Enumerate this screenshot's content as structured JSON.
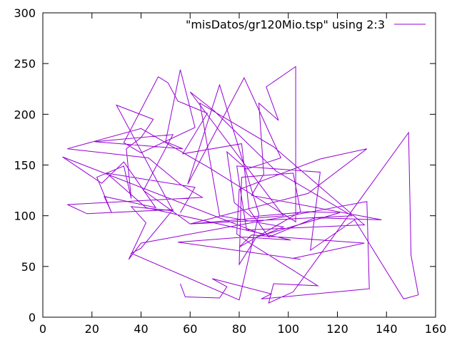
{
  "chart_data": {
    "type": "line",
    "title": "",
    "xlabel": "",
    "ylabel": "",
    "xlim": [
      0,
      160
    ],
    "ylim": [
      0,
      300
    ],
    "x_ticks": [
      "0",
      "20",
      "40",
      "60",
      "80",
      "100",
      "120",
      "140",
      "160"
    ],
    "y_ticks": [
      "0",
      "50",
      "100",
      "150",
      "200",
      "250",
      "300"
    ],
    "grid": false,
    "legend_position": "top-right",
    "series": [
      {
        "name": "\"misDatos/gr120Mio.tsp\" using 2:3",
        "color": "#9400d3",
        "x": [
          56,
          58,
          72,
          75,
          69,
          93,
          89,
          133,
          132,
          40,
          35,
          42,
          36,
          53,
          30,
          45,
          40,
          34,
          36,
          33,
          22,
          28,
          25,
          46,
          33,
          24,
          8,
          90,
          98,
          72,
          64,
          94,
          131,
          83,
          79,
          113,
          109,
          127,
          147,
          153,
          150,
          149,
          102,
          92,
          94,
          112,
          85,
          79,
          80,
          113,
          132,
          108,
          60,
          98,
          60,
          70,
          95,
          126,
          60,
          41,
          53,
          21,
          57,
          50,
          56,
          62,
          40,
          33,
          47,
          51,
          55,
          67,
          57,
          81,
          84,
          92,
          111,
          138,
          85,
          90,
          88,
          96,
          91,
          103,
          103,
          68,
          40,
          10,
          43,
          56,
          65,
          10,
          18,
          53,
          40,
          36,
          80,
          88,
          72,
          59,
          82,
          97,
          83,
          75,
          78,
          85,
          108,
          121,
          87,
          80,
          81,
          102,
          105,
          80,
          85,
          131,
          102,
          105,
          55,
          82,
          101,
          42,
          26,
          62,
          56
        ],
        "y": [
          33,
          20,
          19,
          30,
          38,
          23,
          18,
          28,
          114,
          73,
          57,
          93,
          109,
          105,
          209,
          195,
          177,
          166,
          117,
          149,
          138,
          103,
          119,
          108,
          153,
          132,
          158,
          81,
          89,
          100,
          211,
          168,
          91,
          86,
          149,
          143,
          66,
          96,
          18,
          22,
          61,
          182,
          25,
          14,
          33,
          31,
          72,
          82,
          126,
          156,
          166,
          122,
          92,
          100,
          222,
          203,
          144,
          100,
          92,
          125,
          180,
          173,
          166,
          173,
          244,
          187,
          162,
          172,
          237,
          231,
          213,
          201,
          161,
          171,
          106,
          79,
          98,
          96,
          120,
          141,
          211,
          194,
          227,
          247,
          94,
          147,
          186,
          166,
          157,
          131,
          118,
          111,
          102,
          106,
          68,
          63,
          17,
          102,
          229,
          131,
          236,
          157,
          146,
          163,
          113,
          99,
          104,
          103,
          79,
          52,
          138,
          142,
          104,
          69,
          81,
          73,
          58,
          57,
          74,
          79,
          76,
          108,
          142,
          128,
          103
        ]
      }
    ]
  }
}
